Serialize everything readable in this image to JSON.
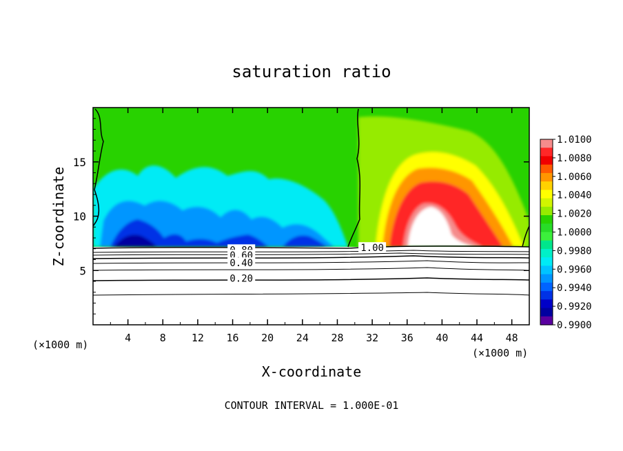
{
  "chart_data": {
    "type": "heatmap",
    "title": "saturation ratio",
    "xlabel": "X-coordinate",
    "ylabel": "Z-coordinate",
    "x_unit_left": "(×1000 m)",
    "x_unit_right": "(×1000 m)",
    "footer": "CONTOUR INTERVAL = 1.000E-01",
    "xlim": [
      0,
      50
    ],
    "ylim": [
      0,
      20
    ],
    "x_ticks": [
      "4",
      "8",
      "12",
      "16",
      "20",
      "24",
      "28",
      "32",
      "36",
      "40",
      "44",
      "48"
    ],
    "y_ticks": [
      "5",
      "10",
      "15"
    ],
    "colorbar": {
      "min": 0.99,
      "max": 1.01,
      "labels": [
        "1.0100",
        "1.0080",
        "1.0060",
        "1.0040",
        "1.0020",
        "1.0000",
        "0.9980",
        "0.9960",
        "0.9940",
        "0.9920",
        "0.9900"
      ],
      "colors": [
        "#f58c8c",
        "#ff2828",
        "#f00000",
        "#ff5a00",
        "#ff9600",
        "#ffd200",
        "#ffff00",
        "#d2f500",
        "#96eb00",
        "#28d200",
        "#28dc28",
        "#3cf03c",
        "#00e68c",
        "#00f0c8",
        "#00ebf5",
        "#00c3ff",
        "#0096ff",
        "#0064ff",
        "#0032e6",
        "#0000c8",
        "#0000a0",
        "#5a00a0"
      ]
    },
    "contour_labels": [
      {
        "text": "0.80",
        "x": 17,
        "z": 6.9
      },
      {
        "text": "0.60",
        "x": 17,
        "z": 6.4
      },
      {
        "text": "0.40",
        "x": 17,
        "z": 5.7
      },
      {
        "text": "0.20",
        "x": 17,
        "z": 4.3
      },
      {
        "text": "1.00",
        "x": 32,
        "z": 7.1
      }
    ],
    "saturation_top_z": 7.4,
    "features": [
      {
        "name": "subsaturated region",
        "x_range": [
          0,
          29
        ],
        "z_range": [
          7.4,
          20
        ],
        "min_value": 0.99
      },
      {
        "name": "supersaturated region",
        "x_range": [
          30,
          50
        ],
        "z_range": [
          7.4,
          20
        ],
        "max_value": 1.01
      }
    ]
  }
}
